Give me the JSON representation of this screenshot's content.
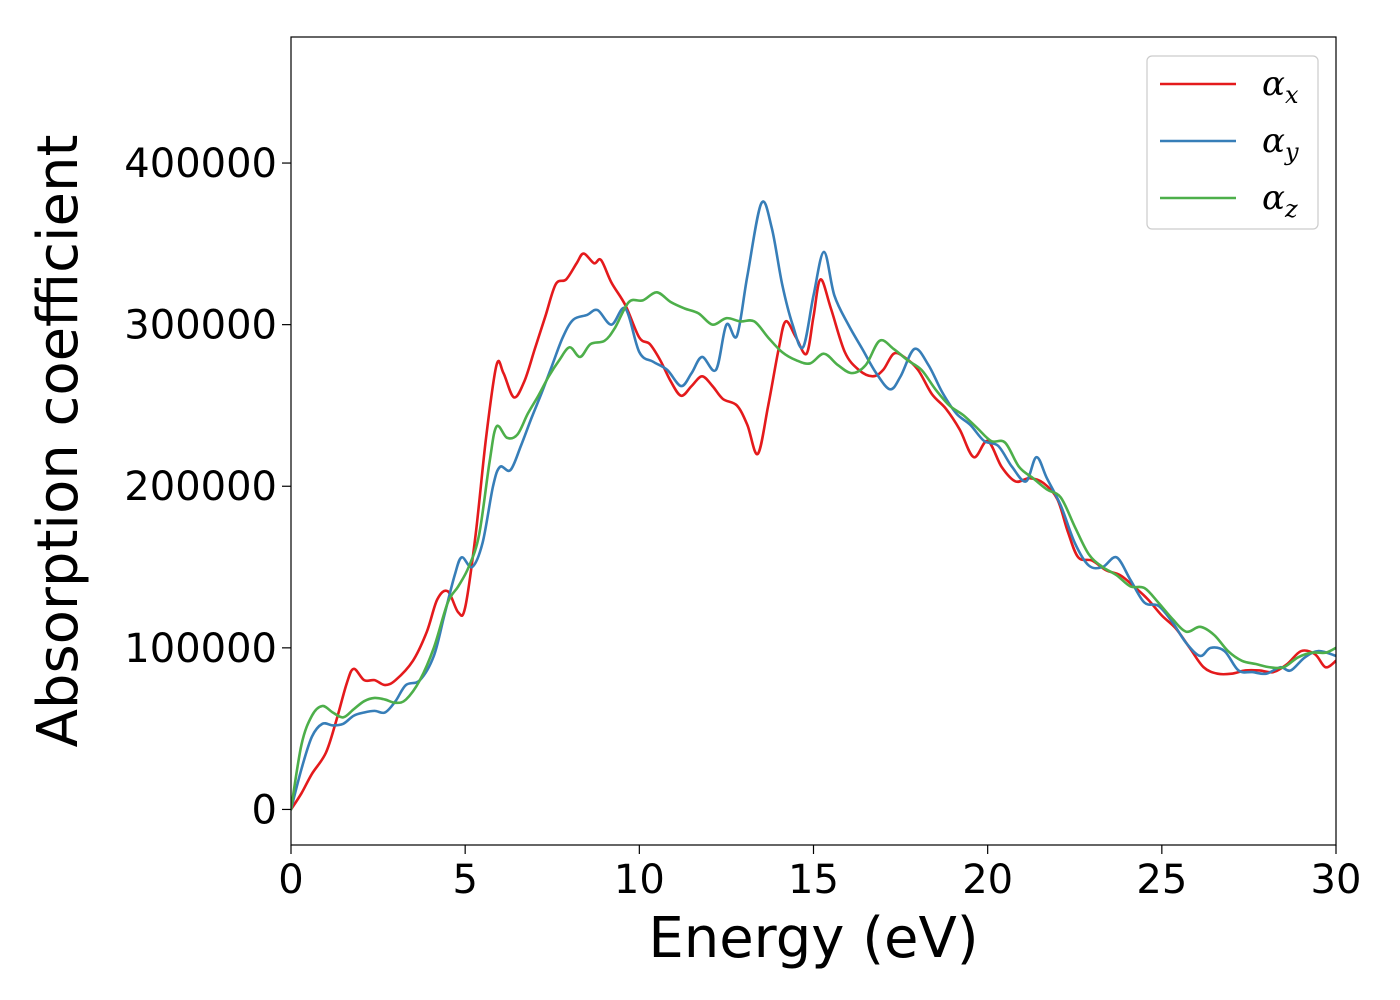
{
  "chart_data": {
    "type": "line",
    "xlabel": "Energy (eV)",
    "ylabel": "Absorption coefficient",
    "xlim": [
      0,
      30
    ],
    "ylim": [
      -22000,
      478000
    ],
    "x_ticks": [
      "0",
      "5",
      "10",
      "15",
      "20",
      "25",
      "30"
    ],
    "y_ticks": [
      "0",
      "100000",
      "200000",
      "300000",
      "400000"
    ],
    "grid": false,
    "legend_position": "top-right",
    "colors": {
      "alpha_x": "#e41a1c",
      "alpha_y": "#377eb8",
      "alpha_z": "#4daf4a"
    },
    "legend": [
      {
        "base": "α",
        "sub": "x",
        "color": "#e41a1c"
      },
      {
        "base": "α",
        "sub": "y",
        "color": "#377eb8"
      },
      {
        "base": "α",
        "sub": "z",
        "color": "#4daf4a"
      }
    ],
    "series": [
      {
        "key": "alpha_x",
        "color": "#e41a1c",
        "points": [
          [
            0,
            0
          ],
          [
            0.3,
            10000
          ],
          [
            0.6,
            22000
          ],
          [
            1.0,
            35000
          ],
          [
            1.3,
            55000
          ],
          [
            1.6,
            78000
          ],
          [
            1.8,
            87000
          ],
          [
            2.1,
            80000
          ],
          [
            2.4,
            80000
          ],
          [
            2.7,
            77000
          ],
          [
            3.0,
            80000
          ],
          [
            3.5,
            92000
          ],
          [
            3.9,
            110000
          ],
          [
            4.2,
            130000
          ],
          [
            4.5,
            135000
          ],
          [
            4.8,
            122000
          ],
          [
            5.0,
            125000
          ],
          [
            5.3,
            170000
          ],
          [
            5.6,
            230000
          ],
          [
            5.9,
            275000
          ],
          [
            6.1,
            270000
          ],
          [
            6.4,
            255000
          ],
          [
            6.7,
            265000
          ],
          [
            7.0,
            285000
          ],
          [
            7.3,
            305000
          ],
          [
            7.6,
            325000
          ],
          [
            7.9,
            328000
          ],
          [
            8.2,
            338000
          ],
          [
            8.4,
            344000
          ],
          [
            8.7,
            338000
          ],
          [
            8.9,
            340000
          ],
          [
            9.2,
            326000
          ],
          [
            9.6,
            312000
          ],
          [
            10.0,
            292000
          ],
          [
            10.3,
            288000
          ],
          [
            10.6,
            278000
          ],
          [
            10.9,
            265000
          ],
          [
            11.2,
            256000
          ],
          [
            11.5,
            262000
          ],
          [
            11.8,
            268000
          ],
          [
            12.1,
            262000
          ],
          [
            12.4,
            254000
          ],
          [
            12.8,
            250000
          ],
          [
            13.1,
            238000
          ],
          [
            13.4,
            220000
          ],
          [
            13.7,
            250000
          ],
          [
            14.0,
            285000
          ],
          [
            14.2,
            302000
          ],
          [
            14.5,
            292000
          ],
          [
            14.8,
            282000
          ],
          [
            15.0,
            305000
          ],
          [
            15.2,
            328000
          ],
          [
            15.5,
            310000
          ],
          [
            15.9,
            283000
          ],
          [
            16.3,
            272000
          ],
          [
            16.7,
            268000
          ],
          [
            17.0,
            272000
          ],
          [
            17.3,
            282000
          ],
          [
            17.6,
            280000
          ],
          [
            18.0,
            272000
          ],
          [
            18.4,
            257000
          ],
          [
            18.8,
            248000
          ],
          [
            19.2,
            235000
          ],
          [
            19.6,
            218000
          ],
          [
            20.0,
            228000
          ],
          [
            20.4,
            212000
          ],
          [
            20.8,
            203000
          ],
          [
            21.2,
            205000
          ],
          [
            21.6,
            202000
          ],
          [
            22.0,
            192000
          ],
          [
            22.3,
            172000
          ],
          [
            22.6,
            156000
          ],
          [
            23.0,
            154000
          ],
          [
            23.4,
            148000
          ],
          [
            23.8,
            145000
          ],
          [
            24.2,
            138000
          ],
          [
            24.6,
            130000
          ],
          [
            25.0,
            120000
          ],
          [
            25.4,
            112000
          ],
          [
            25.8,
            100000
          ],
          [
            26.2,
            88000
          ],
          [
            26.6,
            84000
          ],
          [
            27.0,
            84000
          ],
          [
            27.4,
            86000
          ],
          [
            27.8,
            86000
          ],
          [
            28.2,
            85000
          ],
          [
            28.6,
            90000
          ],
          [
            29.0,
            98000
          ],
          [
            29.4,
            96000
          ],
          [
            29.7,
            88000
          ],
          [
            30.0,
            92000
          ]
        ]
      },
      {
        "key": "alpha_y",
        "color": "#377eb8",
        "points": [
          [
            0,
            0
          ],
          [
            0.3,
            25000
          ],
          [
            0.6,
            45000
          ],
          [
            0.9,
            53000
          ],
          [
            1.2,
            52000
          ],
          [
            1.5,
            53000
          ],
          [
            1.8,
            58000
          ],
          [
            2.1,
            60000
          ],
          [
            2.4,
            61000
          ],
          [
            2.7,
            60000
          ],
          [
            3.0,
            67000
          ],
          [
            3.3,
            77000
          ],
          [
            3.7,
            80000
          ],
          [
            4.1,
            95000
          ],
          [
            4.4,
            120000
          ],
          [
            4.7,
            145000
          ],
          [
            4.9,
            156000
          ],
          [
            5.2,
            150000
          ],
          [
            5.5,
            165000
          ],
          [
            5.8,
            200000
          ],
          [
            6.0,
            212000
          ],
          [
            6.3,
            210000
          ],
          [
            6.6,
            225000
          ],
          [
            6.9,
            242000
          ],
          [
            7.2,
            258000
          ],
          [
            7.5,
            275000
          ],
          [
            7.8,
            292000
          ],
          [
            8.1,
            303000
          ],
          [
            8.5,
            306000
          ],
          [
            8.8,
            309000
          ],
          [
            9.2,
            300000
          ],
          [
            9.6,
            310000
          ],
          [
            10.0,
            283000
          ],
          [
            10.4,
            277000
          ],
          [
            10.8,
            272000
          ],
          [
            11.2,
            262000
          ],
          [
            11.5,
            270000
          ],
          [
            11.8,
            280000
          ],
          [
            12.2,
            272000
          ],
          [
            12.5,
            300000
          ],
          [
            12.8,
            293000
          ],
          [
            13.1,
            330000
          ],
          [
            13.5,
            375000
          ],
          [
            13.8,
            360000
          ],
          [
            14.1,
            325000
          ],
          [
            14.4,
            300000
          ],
          [
            14.7,
            286000
          ],
          [
            15.0,
            318000
          ],
          [
            15.3,
            345000
          ],
          [
            15.6,
            318000
          ],
          [
            16.0,
            300000
          ],
          [
            16.4,
            285000
          ],
          [
            16.8,
            270000
          ],
          [
            17.2,
            260000
          ],
          [
            17.5,
            268000
          ],
          [
            17.9,
            285000
          ],
          [
            18.3,
            275000
          ],
          [
            18.7,
            258000
          ],
          [
            19.1,
            245000
          ],
          [
            19.5,
            238000
          ],
          [
            19.9,
            228000
          ],
          [
            20.3,
            225000
          ],
          [
            20.7,
            212000
          ],
          [
            21.1,
            203000
          ],
          [
            21.4,
            218000
          ],
          [
            21.7,
            205000
          ],
          [
            22.1,
            188000
          ],
          [
            22.5,
            165000
          ],
          [
            22.9,
            151000
          ],
          [
            23.3,
            150000
          ],
          [
            23.7,
            156000
          ],
          [
            24.1,
            142000
          ],
          [
            24.5,
            128000
          ],
          [
            24.9,
            126000
          ],
          [
            25.3,
            116000
          ],
          [
            25.7,
            103000
          ],
          [
            26.1,
            95000
          ],
          [
            26.4,
            100000
          ],
          [
            26.8,
            98000
          ],
          [
            27.2,
            86000
          ],
          [
            27.6,
            85000
          ],
          [
            28.0,
            84000
          ],
          [
            28.4,
            88000
          ],
          [
            28.7,
            86000
          ],
          [
            29.1,
            94000
          ],
          [
            29.5,
            98000
          ],
          [
            30.0,
            95000
          ]
        ]
      },
      {
        "key": "alpha_z",
        "color": "#4daf4a",
        "points": [
          [
            0,
            0
          ],
          [
            0.3,
            40000
          ],
          [
            0.6,
            58000
          ],
          [
            0.9,
            64000
          ],
          [
            1.2,
            60000
          ],
          [
            1.5,
            57000
          ],
          [
            1.8,
            62000
          ],
          [
            2.1,
            67000
          ],
          [
            2.4,
            69000
          ],
          [
            2.7,
            68000
          ],
          [
            3.0,
            66000
          ],
          [
            3.3,
            68000
          ],
          [
            3.7,
            80000
          ],
          [
            4.1,
            100000
          ],
          [
            4.5,
            128000
          ],
          [
            4.8,
            138000
          ],
          [
            5.1,
            150000
          ],
          [
            5.4,
            170000
          ],
          [
            5.7,
            215000
          ],
          [
            5.9,
            237000
          ],
          [
            6.2,
            230000
          ],
          [
            6.5,
            232000
          ],
          [
            6.8,
            245000
          ],
          [
            7.1,
            256000
          ],
          [
            7.4,
            268000
          ],
          [
            7.7,
            278000
          ],
          [
            8.0,
            286000
          ],
          [
            8.3,
            280000
          ],
          [
            8.6,
            288000
          ],
          [
            9.0,
            290000
          ],
          [
            9.3,
            298000
          ],
          [
            9.7,
            314000
          ],
          [
            10.1,
            315000
          ],
          [
            10.5,
            320000
          ],
          [
            10.9,
            314000
          ],
          [
            11.3,
            310000
          ],
          [
            11.7,
            307000
          ],
          [
            12.1,
            300000
          ],
          [
            12.5,
            304000
          ],
          [
            12.9,
            302000
          ],
          [
            13.3,
            302000
          ],
          [
            13.7,
            292000
          ],
          [
            14.1,
            283000
          ],
          [
            14.5,
            278000
          ],
          [
            14.9,
            276000
          ],
          [
            15.3,
            282000
          ],
          [
            15.7,
            275000
          ],
          [
            16.1,
            270000
          ],
          [
            16.5,
            275000
          ],
          [
            16.9,
            290000
          ],
          [
            17.3,
            285000
          ],
          [
            17.7,
            278000
          ],
          [
            18.1,
            272000
          ],
          [
            18.5,
            260000
          ],
          [
            18.9,
            250000
          ],
          [
            19.3,
            244000
          ],
          [
            19.7,
            236000
          ],
          [
            20.1,
            228000
          ],
          [
            20.5,
            227000
          ],
          [
            20.9,
            212000
          ],
          [
            21.3,
            205000
          ],
          [
            21.7,
            198000
          ],
          [
            22.1,
            193000
          ],
          [
            22.5,
            175000
          ],
          [
            22.9,
            158000
          ],
          [
            23.3,
            150000
          ],
          [
            23.7,
            145000
          ],
          [
            24.1,
            138000
          ],
          [
            24.5,
            137000
          ],
          [
            24.9,
            128000
          ],
          [
            25.3,
            118000
          ],
          [
            25.7,
            110000
          ],
          [
            26.1,
            113000
          ],
          [
            26.5,
            108000
          ],
          [
            26.9,
            98000
          ],
          [
            27.3,
            92000
          ],
          [
            27.7,
            90000
          ],
          [
            28.1,
            88000
          ],
          [
            28.5,
            88000
          ],
          [
            28.9,
            94000
          ],
          [
            29.3,
            97000
          ],
          [
            29.7,
            97000
          ],
          [
            30.0,
            100000
          ]
        ]
      }
    ]
  }
}
